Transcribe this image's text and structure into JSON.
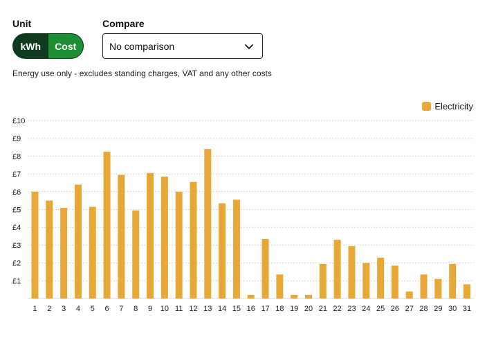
{
  "unit": {
    "label": "Unit",
    "options": [
      "kWh",
      "Cost"
    ],
    "selected": "Cost"
  },
  "compare": {
    "label": "Compare",
    "selected": "No comparison"
  },
  "note": "Energy use only - excludes standing charges, VAT and any other costs",
  "legend": {
    "label": "Electricity"
  },
  "colors": {
    "bar": "#e8a838",
    "toggle_dark": "#0e3b1f",
    "toggle_active": "#1e8e34",
    "grid": "#d9d9d9"
  },
  "chart_data": {
    "type": "bar",
    "categories": [
      "1",
      "2",
      "3",
      "4",
      "5",
      "6",
      "7",
      "8",
      "9",
      "10",
      "11",
      "12",
      "13",
      "14",
      "15",
      "16",
      "17",
      "18",
      "19",
      "20",
      "21",
      "22",
      "23",
      "24",
      "25",
      "26",
      "27",
      "28",
      "29",
      "30",
      "31"
    ],
    "series": [
      {
        "name": "Electricity",
        "values": [
          6.0,
          5.5,
          5.1,
          6.4,
          5.15,
          8.25,
          6.95,
          4.95,
          7.05,
          6.85,
          6.0,
          6.55,
          8.4,
          5.35,
          5.55,
          0.2,
          3.35,
          1.35,
          0.2,
          0.2,
          1.95,
          3.3,
          2.95,
          2.0,
          2.3,
          1.85,
          0.4,
          1.35,
          1.1,
          1.95,
          0.8
        ]
      }
    ],
    "y_ticks": [
      "£1",
      "£2",
      "£3",
      "£4",
      "£5",
      "£6",
      "£7",
      "£8",
      "£9",
      "£10"
    ],
    "ylim": [
      0,
      10
    ],
    "grid": true,
    "legend_position": "top-right"
  }
}
